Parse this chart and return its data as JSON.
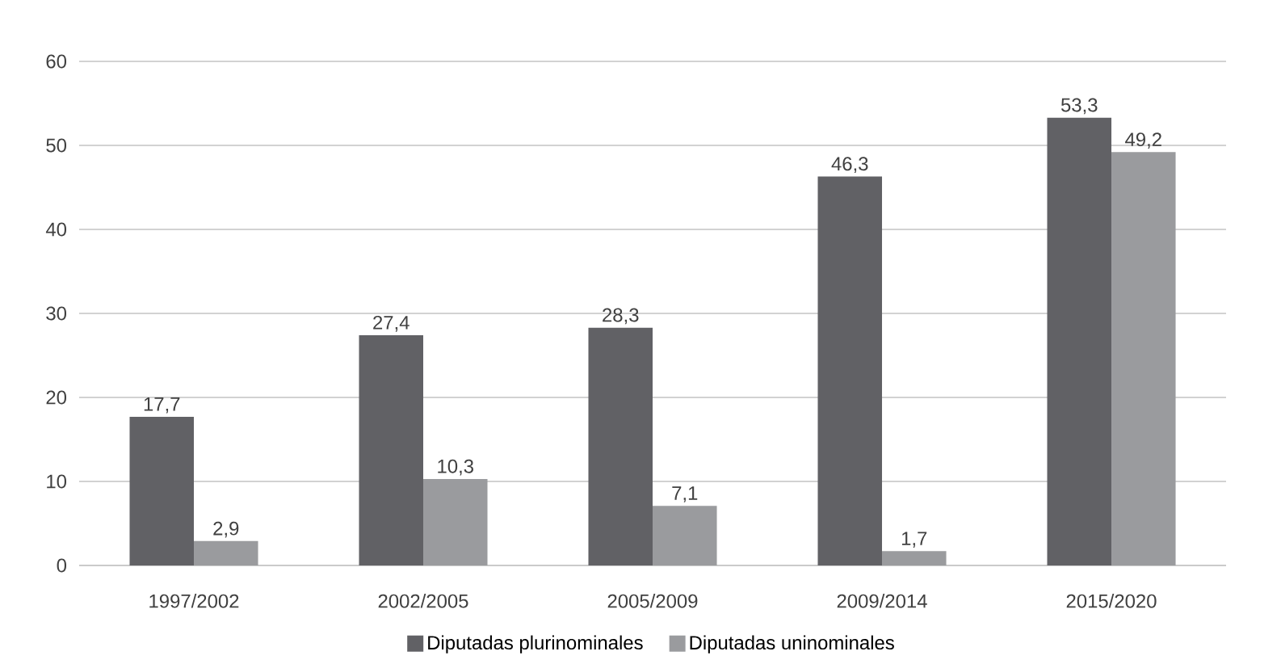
{
  "chart_data": {
    "type": "bar",
    "categories": [
      "1997/2002",
      "2002/2005",
      "2005/2009",
      "2009/2014",
      "2015/2020"
    ],
    "series": [
      {
        "name": "Diputadas plurinominales",
        "color": "#616165",
        "values": [
          17.7,
          27.4,
          28.3,
          46.3,
          53.3
        ],
        "value_labels": [
          "17,7",
          "27,4",
          "28,3",
          "46,3",
          "53,3"
        ]
      },
      {
        "name": "Diputadas uninominales",
        "color": "#9a9b9e",
        "values": [
          2.9,
          10.3,
          7.1,
          1.7,
          49.2
        ],
        "value_labels": [
          "2,9",
          "10,3",
          "7,1",
          "1,7",
          "49,2"
        ]
      }
    ],
    "ylim": [
      0,
      60
    ],
    "yticks": [
      0,
      10,
      20,
      30,
      40,
      50,
      60
    ],
    "grid": "y",
    "legend": "bottom"
  }
}
